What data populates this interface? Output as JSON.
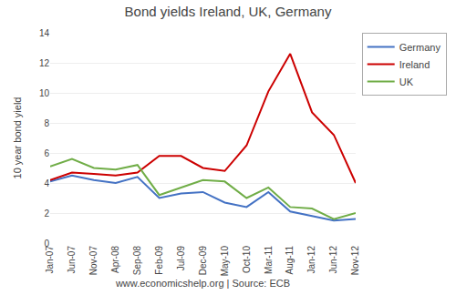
{
  "chart_data": {
    "type": "line",
    "title": "Bond yields Ireland, UK, Germany",
    "xlabel": "www.economicshelp.org | Source: ECB",
    "ylabel": "10 year bond yield",
    "categories": [
      "Jan-07",
      "Jun-07",
      "Nov-07",
      "Apr-08",
      "Sep-08",
      "Feb-09",
      "Jul-09",
      "Dec-09",
      "May-10",
      "Oct-10",
      "Mar-11",
      "Aug-11",
      "Jan-12",
      "Jun-12",
      "Nov-12"
    ],
    "series": [
      {
        "name": "Germany",
        "color": "#4472C4",
        "values": [
          4.1,
          4.5,
          4.2,
          4.0,
          4.4,
          3.0,
          3.3,
          3.4,
          2.7,
          2.4,
          3.4,
          2.1,
          1.8,
          1.5,
          1.6
        ]
      },
      {
        "name": "Ireland",
        "color": "#CC0000",
        "values": [
          4.2,
          4.7,
          4.6,
          4.5,
          4.7,
          5.8,
          5.8,
          5.0,
          4.8,
          6.5,
          10.1,
          12.6,
          8.7,
          7.2,
          4.0
        ]
      },
      {
        "name": "UK",
        "color": "#70AD47",
        "values": [
          5.1,
          5.6,
          5.0,
          4.9,
          5.2,
          3.2,
          3.7,
          4.2,
          4.1,
          3.0,
          3.7,
          2.4,
          2.3,
          1.6,
          2.0
        ]
      }
    ],
    "ylim": [
      0,
      14
    ],
    "yticks": [
      0,
      2,
      4,
      6,
      8,
      10,
      12,
      14
    ],
    "grid": true,
    "legend": "upper right"
  }
}
